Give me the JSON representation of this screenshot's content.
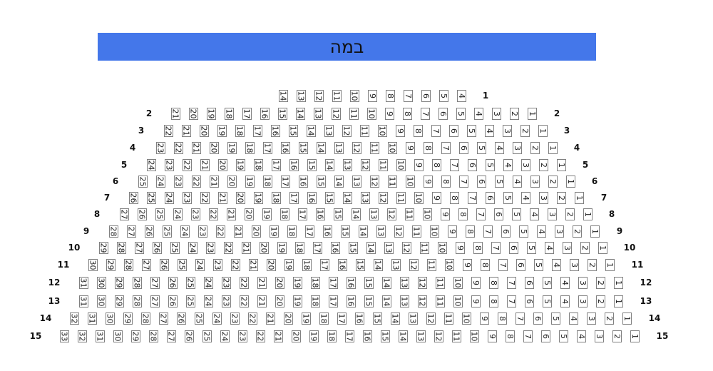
{
  "stage": {
    "label": "במה",
    "color": "#4477ea"
  },
  "rows": [
    {
      "row": "1",
      "seats": [
        "14",
        "13",
        "12",
        "11",
        "10",
        "9",
        "8",
        "7",
        "6",
        "5",
        "4"
      ]
    },
    {
      "row": "2",
      "seats": [
        "21",
        "20",
        "19",
        "18",
        "17",
        "16",
        "15",
        "14",
        "13",
        "12",
        "11",
        "10",
        "9",
        "8",
        "7",
        "6",
        "5",
        "4",
        "3",
        "2",
        "1"
      ]
    },
    {
      "row": "3",
      "seats": [
        "22",
        "21",
        "20",
        "19",
        "18",
        "17",
        "16",
        "15",
        "14",
        "13",
        "12",
        "11",
        "10",
        "9",
        "8",
        "7",
        "6",
        "5",
        "4",
        "3",
        "2",
        "1"
      ]
    },
    {
      "row": "4",
      "seats": [
        "23",
        "22",
        "21",
        "20",
        "19",
        "18",
        "17",
        "16",
        "15",
        "14",
        "13",
        "12",
        "11",
        "10",
        "9",
        "8",
        "7",
        "6",
        "5",
        "4",
        "3",
        "2",
        "1"
      ]
    },
    {
      "row": "5",
      "seats": [
        "24",
        "23",
        "22",
        "21",
        "20",
        "19",
        "18",
        "17",
        "16",
        "15",
        "14",
        "13",
        "12",
        "11",
        "10",
        "9",
        "8",
        "7",
        "6",
        "5",
        "4",
        "3",
        "2",
        "1"
      ]
    },
    {
      "row": "6",
      "seats": [
        "25",
        "24",
        "23",
        "22",
        "21",
        "20",
        "19",
        "18",
        "17",
        "16",
        "15",
        "14",
        "13",
        "12",
        "11",
        "10",
        "9",
        "8",
        "7",
        "6",
        "5",
        "4",
        "3",
        "2",
        "1"
      ]
    },
    {
      "row": "7",
      "seats": [
        "26",
        "25",
        "24",
        "23",
        "22",
        "21",
        "20",
        "19",
        "18",
        "17",
        "16",
        "15",
        "14",
        "13",
        "12",
        "11",
        "10",
        "9",
        "8",
        "7",
        "6",
        "5",
        "4",
        "3",
        "2",
        "1"
      ]
    },
    {
      "row": "8",
      "seats": [
        "27",
        "26",
        "25",
        "24",
        "23",
        "22",
        "21",
        "20",
        "19",
        "18",
        "17",
        "16",
        "15",
        "14",
        "13",
        "12",
        "11",
        "10",
        "9",
        "8",
        "7",
        "6",
        "5",
        "4",
        "3",
        "2",
        "1"
      ]
    },
    {
      "row": "9",
      "seats": [
        "28",
        "27",
        "26",
        "25",
        "24",
        "23",
        "22",
        "21",
        "20",
        "19",
        "18",
        "17",
        "16",
        "15",
        "14",
        "13",
        "12",
        "11",
        "10",
        "9",
        "8",
        "7",
        "6",
        "5",
        "4",
        "3",
        "2",
        "1"
      ]
    },
    {
      "row": "10",
      "seats": [
        "29",
        "28",
        "27",
        "26",
        "25",
        "24",
        "23",
        "22",
        "21",
        "20",
        "19",
        "18",
        "17",
        "16",
        "15",
        "14",
        "13",
        "12",
        "11",
        "10",
        "9",
        "8",
        "7",
        "6",
        "5",
        "4",
        "3",
        "2",
        "1"
      ]
    },
    {
      "row": "11",
      "seats": [
        "30",
        "29",
        "28",
        "27",
        "26",
        "25",
        "24",
        "23",
        "22",
        "21",
        "20",
        "19",
        "18",
        "17",
        "16",
        "15",
        "14",
        "13",
        "12",
        "11",
        "10",
        "9",
        "8",
        "7",
        "6",
        "5",
        "4",
        "3",
        "2",
        "1"
      ]
    },
    {
      "row": "12",
      "seats": [
        "31",
        "30",
        "29",
        "28",
        "27",
        "26",
        "25",
        "24",
        "23",
        "22",
        "21",
        "20",
        "19",
        "18",
        "17",
        "16",
        "15",
        "14",
        "13",
        "12",
        "11",
        "10",
        "9",
        "8",
        "7",
        "6",
        "5",
        "4",
        "3",
        "2",
        "1"
      ]
    },
    {
      "row": "13",
      "seats": [
        "31",
        "30",
        "29",
        "28",
        "27",
        "26",
        "25",
        "24",
        "23",
        "22",
        "21",
        "20",
        "19",
        "18",
        "17",
        "16",
        "15",
        "14",
        "13",
        "12",
        "11",
        "10",
        "9",
        "8",
        "7",
        "6",
        "5",
        "4",
        "3",
        "2",
        "1"
      ]
    },
    {
      "row": "14",
      "seats": [
        "32",
        "31",
        "30",
        "29",
        "28",
        "27",
        "26",
        "25",
        "24",
        "23",
        "22",
        "21",
        "20",
        "19",
        "18",
        "17",
        "16",
        "15",
        "14",
        "13",
        "12",
        "11",
        "10",
        "9",
        "8",
        "7",
        "6",
        "5",
        "4",
        "3",
        "2",
        "1"
      ]
    },
    {
      "row": "15",
      "seats": [
        "33",
        "32",
        "31",
        "30",
        "29",
        "28",
        "27",
        "26",
        "25",
        "24",
        "23",
        "22",
        "21",
        "20",
        "19",
        "18",
        "17",
        "16",
        "15",
        "14",
        "13",
        "12",
        "11",
        "10",
        "9",
        "8",
        "7",
        "6",
        "5",
        "4",
        "3",
        "2",
        "1"
      ]
    }
  ]
}
